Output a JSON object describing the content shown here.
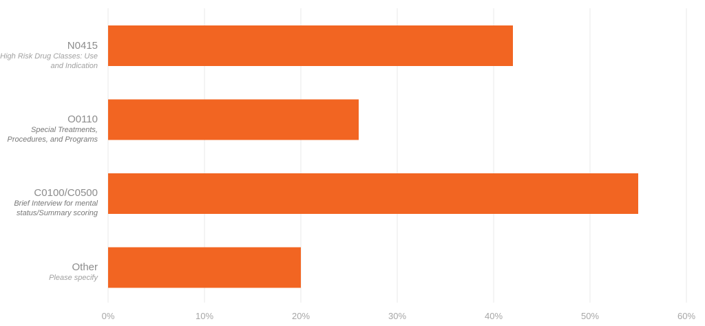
{
  "chart_data": {
    "type": "bar",
    "orientation": "horizontal",
    "categories": [
      {
        "code": "N0415",
        "description": "High Risk Drug Classes: Use and Indication"
      },
      {
        "code": "O0110",
        "description": "Special Treatments, Procedures, and Programs"
      },
      {
        "code": "C0100/C0500",
        "description": "Brief Interview for mental status/Summary scoring"
      },
      {
        "code": "Other",
        "description": "Please specify"
      }
    ],
    "values": [
      42,
      26,
      55,
      20
    ],
    "xlim": [
      0,
      60
    ],
    "xticks": [
      "0%",
      "10%",
      "20%",
      "30%",
      "40%",
      "50%",
      "60%"
    ],
    "xtick_values": [
      0,
      10,
      20,
      30,
      40,
      50,
      60
    ],
    "grid": "vertical",
    "bar_color": "#f26522",
    "title": "",
    "xlabel": "",
    "ylabel": ""
  }
}
